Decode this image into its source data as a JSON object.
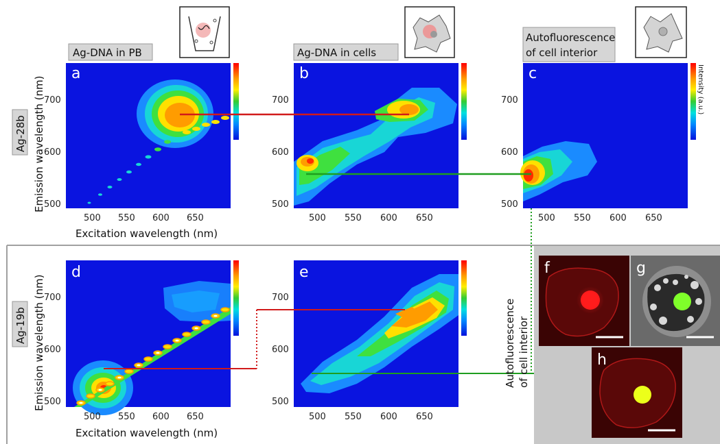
{
  "headers": {
    "col1": "Ag-DNA in PB",
    "col2": "Ag-DNA in cells",
    "col3_line1": "Autofluorescence",
    "col3_line2": "of cell interior"
  },
  "rows": {
    "row1": "Ag-28b",
    "row2": "Ag-19b"
  },
  "side_label": {
    "line1": "Autofluorescence",
    "line2": "of cell interior"
  },
  "colorbar_label": "Intensity (a.u.)",
  "axes": {
    "x_title": "Excitation wavelength (nm)",
    "y_title": "Emission wavelength (nm)",
    "x_ticks": [
      "500",
      "550",
      "600",
      "650"
    ],
    "y_ticks": [
      "500",
      "600",
      "700"
    ]
  },
  "panels": {
    "a": "a",
    "b": "b",
    "c": "c",
    "d": "d",
    "e": "e",
    "f": "f",
    "g": "g",
    "h": "h"
  },
  "colors": {
    "map_background": "#0a14e0",
    "red_line": "#d11a1a",
    "green_line": "#1e9e1e",
    "gray_panel": "#c8c8c8"
  },
  "chart_data": [
    {
      "type": "heatmap",
      "panel": "a",
      "x_range": [
        470,
        670
      ],
      "y_range": [
        490,
        760
      ],
      "features": [
        {
          "kind": "blob",
          "x": 610,
          "y": 668,
          "intensity": "high"
        },
        {
          "kind": "diagonal",
          "from": [
            500,
            500
          ],
          "to": [
            665,
            665
          ]
        }
      ]
    },
    {
      "type": "heatmap",
      "panel": "b",
      "x_range": [
        470,
        670
      ],
      "y_range": [
        490,
        760
      ],
      "features": [
        {
          "kind": "blob",
          "x": 600,
          "y": 675,
          "intensity": "high"
        },
        {
          "kind": "blob",
          "x": 485,
          "y": 570,
          "intensity": "high"
        }
      ]
    },
    {
      "type": "heatmap",
      "panel": "c",
      "x_range": [
        470,
        670
      ],
      "y_range": [
        490,
        760
      ],
      "features": [
        {
          "kind": "blob",
          "x": 480,
          "y": 550,
          "intensity": "high"
        }
      ]
    },
    {
      "type": "heatmap",
      "panel": "d",
      "x_range": [
        470,
        670
      ],
      "y_range": [
        490,
        760
      ],
      "features": [
        {
          "kind": "blob",
          "x": 505,
          "y": 565,
          "intensity": "high"
        },
        {
          "kind": "diagonal",
          "from": [
            485,
            490
          ],
          "to": [
            668,
            672
          ]
        }
      ]
    },
    {
      "type": "heatmap",
      "panel": "e",
      "x_range": [
        470,
        670
      ],
      "y_range": [
        490,
        760
      ],
      "features": [
        {
          "kind": "blob",
          "x": 605,
          "y": 675,
          "intensity": "high"
        }
      ]
    }
  ]
}
